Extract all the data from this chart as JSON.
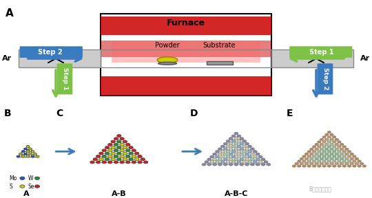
{
  "title_A": "A",
  "title_B": "B",
  "title_C": "C",
  "title_D": "D",
  "title_E": "E",
  "furnace_label": "Furnace",
  "powder_label": "Powder",
  "substrate_label": "Substrate",
  "step1_label": "Step 1",
  "step2_label": "Step 2",
  "ar_label": "Ar",
  "triangle_A_label": "A",
  "triangle_AB_label": "A-B",
  "triangle_ABC_label": "A-B-C",
  "legend_items": [
    "Mo",
    "W",
    "S",
    "Se"
  ],
  "legend_colors": [
    "#1a5ccc",
    "#2e8b2e",
    "#cccc00",
    "#cc2222"
  ],
  "bg_color": "#f0f0f0",
  "step1_color_left": "#7dc247",
  "step2_color_left": "#3a7abf",
  "step1_color_right": "#7dc247",
  "step2_color_right": "#3a7abf",
  "furnace_red": "#cc0000",
  "furnace_light_red": "#ff6666",
  "tube_gray": "#aaaaaa",
  "atom_mo": "#1a5ccc",
  "atom_w": "#2e8b2e",
  "atom_s": "#cccc00",
  "atom_se": "#cc2222"
}
